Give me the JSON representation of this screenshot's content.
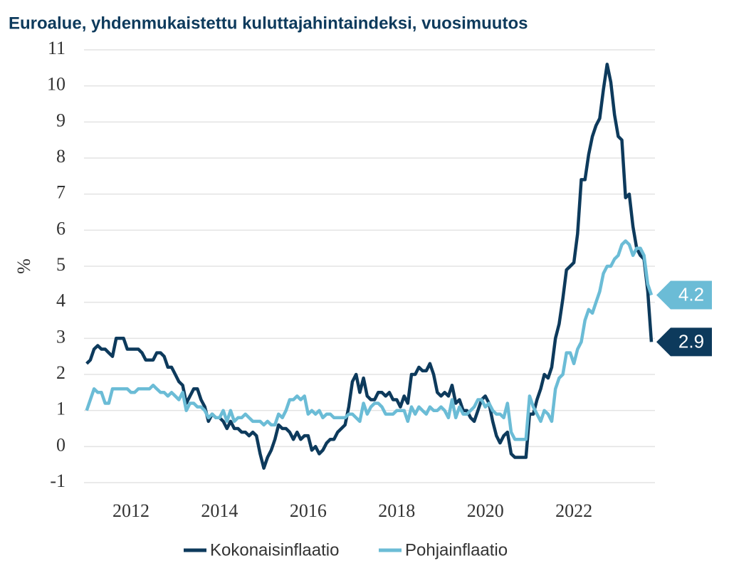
{
  "chart_data": {
    "type": "line",
    "title": "Euroalue, yhdenmukaistettu kuluttajahintaindeksi, vuosimuutos",
    "y_label": "%",
    "x": [
      2011,
      2011.083,
      2011.167,
      2011.25,
      2011.333,
      2011.417,
      2011.5,
      2011.583,
      2011.667,
      2011.75,
      2011.833,
      2011.917,
      2012,
      2012.083,
      2012.167,
      2012.25,
      2012.333,
      2012.417,
      2012.5,
      2012.583,
      2012.667,
      2012.75,
      2012.833,
      2012.917,
      2013,
      2013.083,
      2013.167,
      2013.25,
      2013.333,
      2013.417,
      2013.5,
      2013.583,
      2013.667,
      2013.75,
      2013.833,
      2013.917,
      2014,
      2014.083,
      2014.167,
      2014.25,
      2014.333,
      2014.417,
      2014.5,
      2014.583,
      2014.667,
      2014.75,
      2014.833,
      2014.917,
      2015,
      2015.083,
      2015.167,
      2015.25,
      2015.333,
      2015.417,
      2015.5,
      2015.583,
      2015.667,
      2015.75,
      2015.833,
      2015.917,
      2016,
      2016.083,
      2016.167,
      2016.25,
      2016.333,
      2016.417,
      2016.5,
      2016.583,
      2016.667,
      2016.75,
      2016.833,
      2016.917,
      2017,
      2017.083,
      2017.167,
      2017.25,
      2017.333,
      2017.417,
      2017.5,
      2017.583,
      2017.667,
      2017.75,
      2017.833,
      2017.917,
      2018,
      2018.083,
      2018.167,
      2018.25,
      2018.333,
      2018.417,
      2018.5,
      2018.583,
      2018.667,
      2018.75,
      2018.833,
      2018.917,
      2019,
      2019.083,
      2019.167,
      2019.25,
      2019.333,
      2019.417,
      2019.5,
      2019.583,
      2019.667,
      2019.75,
      2019.833,
      2019.917,
      2020,
      2020.083,
      2020.167,
      2020.25,
      2020.333,
      2020.417,
      2020.5,
      2020.583,
      2020.667,
      2020.75,
      2020.833,
      2020.917,
      2021,
      2021.083,
      2021.167,
      2021.25,
      2021.333,
      2021.417,
      2021.5,
      2021.583,
      2021.667,
      2021.75,
      2021.833,
      2021.917,
      2022,
      2022.083,
      2022.167,
      2022.25,
      2022.333,
      2022.417,
      2022.5,
      2022.583,
      2022.667,
      2022.75,
      2022.833,
      2022.917,
      2023,
      2023.083,
      2023.167,
      2023.25,
      2023.333,
      2023.417,
      2023.5,
      2023.583,
      2023.667,
      2023.75
    ],
    "series": [
      {
        "name": "Kokonaisinflaatio",
        "color": "#0d3a5c",
        "values": [
          2.3,
          2.4,
          2.7,
          2.8,
          2.7,
          2.7,
          2.6,
          2.5,
          3.0,
          3.0,
          3.0,
          2.7,
          2.7,
          2.7,
          2.7,
          2.6,
          2.4,
          2.4,
          2.4,
          2.6,
          2.6,
          2.5,
          2.2,
          2.2,
          2.0,
          1.8,
          1.7,
          1.2,
          1.4,
          1.6,
          1.6,
          1.3,
          1.1,
          0.7,
          0.9,
          0.8,
          0.8,
          0.7,
          0.5,
          0.7,
          0.5,
          0.5,
          0.4,
          0.4,
          0.3,
          0.4,
          0.3,
          -0.2,
          -0.6,
          -0.3,
          -0.1,
          0.2,
          0.6,
          0.5,
          0.5,
          0.4,
          0.2,
          0.4,
          0.2,
          0.3,
          0.3,
          -0.1,
          0.0,
          -0.2,
          -0.1,
          0.1,
          0.2,
          0.2,
          0.4,
          0.5,
          0.6,
          1.1,
          1.8,
          2.0,
          1.5,
          1.9,
          1.4,
          1.3,
          1.3,
          1.5,
          1.5,
          1.4,
          1.5,
          1.3,
          1.3,
          1.1,
          1.4,
          1.2,
          2.0,
          2.0,
          2.2,
          2.1,
          2.1,
          2.3,
          2.0,
          1.5,
          1.4,
          1.5,
          1.4,
          1.7,
          1.2,
          1.3,
          1.0,
          1.0,
          0.8,
          0.7,
          1.0,
          1.3,
          1.4,
          1.2,
          0.7,
          0.3,
          0.1,
          0.3,
          0.4,
          -0.2,
          -0.3,
          -0.3,
          -0.3,
          -0.3,
          0.9,
          0.9,
          1.3,
          1.6,
          2.0,
          1.9,
          2.2,
          3.0,
          3.4,
          4.1,
          4.9,
          5.0,
          5.1,
          5.9,
          7.4,
          7.4,
          8.1,
          8.6,
          8.9,
          9.1,
          9.9,
          10.6,
          10.1,
          9.2,
          8.6,
          8.5,
          6.9,
          7.0,
          6.1,
          5.5,
          5.3,
          5.2,
          4.3,
          2.9
        ]
      },
      {
        "name": "Pohjainflaatio",
        "color": "#6bbcd6",
        "values": [
          1.0,
          1.3,
          1.6,
          1.5,
          1.5,
          1.2,
          1.2,
          1.6,
          1.6,
          1.6,
          1.6,
          1.6,
          1.5,
          1.5,
          1.6,
          1.6,
          1.6,
          1.6,
          1.7,
          1.6,
          1.5,
          1.5,
          1.4,
          1.5,
          1.4,
          1.3,
          1.5,
          1.0,
          1.2,
          1.2,
          1.1,
          1.1,
          1.0,
          0.8,
          0.9,
          0.8,
          0.8,
          1.0,
          0.7,
          1.0,
          0.7,
          0.8,
          0.8,
          0.9,
          0.8,
          0.7,
          0.7,
          0.7,
          0.6,
          0.7,
          0.6,
          0.6,
          0.9,
          0.8,
          1.0,
          1.3,
          1.3,
          1.4,
          1.3,
          1.4,
          0.9,
          1.0,
          0.9,
          1.0,
          0.8,
          0.9,
          0.9,
          0.8,
          0.8,
          0.8,
          0.8,
          0.9,
          0.9,
          0.8,
          0.7,
          1.2,
          0.9,
          1.1,
          1.2,
          1.2,
          1.1,
          0.9,
          0.9,
          0.9,
          1.0,
          1.0,
          1.0,
          0.7,
          1.1,
          0.9,
          1.1,
          1.0,
          0.9,
          1.1,
          1.0,
          1.0,
          1.1,
          1.0,
          0.8,
          1.3,
          0.8,
          1.1,
          0.9,
          0.9,
          1.0,
          1.1,
          1.3,
          1.3,
          1.1,
          1.2,
          1.0,
          0.9,
          0.9,
          0.8,
          1.2,
          0.4,
          0.2,
          0.2,
          0.2,
          0.2,
          1.4,
          1.1,
          0.9,
          0.7,
          1.0,
          0.9,
          0.7,
          1.6,
          1.9,
          2.0,
          2.6,
          2.6,
          2.3,
          2.7,
          2.9,
          3.5,
          3.8,
          3.7,
          4.0,
          4.3,
          4.8,
          5.0,
          5.0,
          5.2,
          5.3,
          5.6,
          5.7,
          5.6,
          5.3,
          5.5,
          5.5,
          5.3,
          4.5,
          4.2
        ]
      }
    ],
    "xlim": [
      2010.94,
      2023.83
    ],
    "xticks": [
      2012,
      2014,
      2016,
      2018,
      2020,
      2022
    ],
    "ylim": [
      -1,
      11
    ],
    "yticks": [
      -1,
      0,
      1,
      2,
      3,
      4,
      5,
      6,
      7,
      8,
      9,
      10,
      11
    ],
    "grid": true
  }
}
